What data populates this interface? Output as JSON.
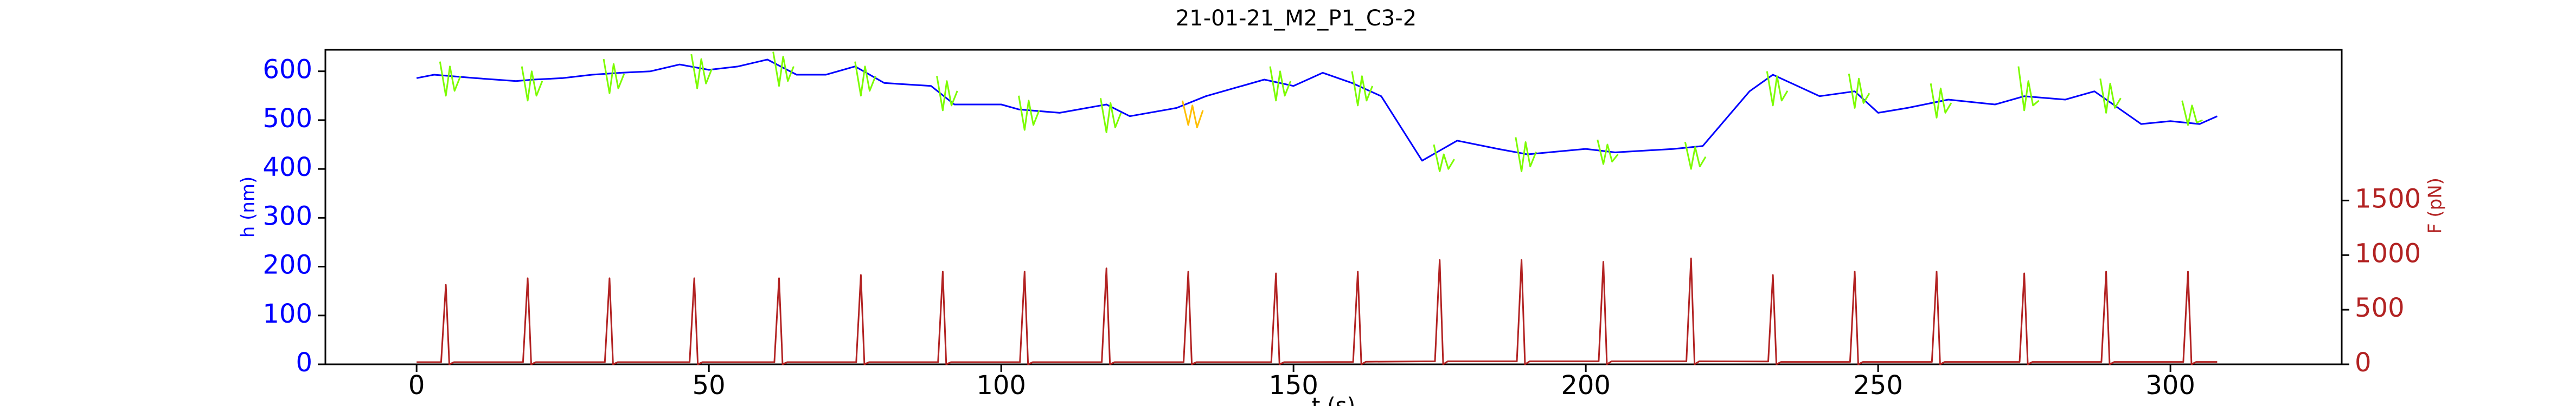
{
  "chart_data": {
    "type": "line",
    "title": "21-01-21_M2_P1_C3-2",
    "xlabel": "t (s)",
    "ylabel": "h (nm)",
    "y2label": "F (pN)",
    "ycolor": "#0000ff",
    "y2color": "#b22222",
    "xlim": [
      -15.6,
      329.3
    ],
    "xticks": [
      0,
      50,
      100,
      150,
      200,
      250,
      300
    ],
    "ylim": [
      0,
      644
    ],
    "yticks": [
      0,
      100,
      200,
      300,
      400,
      500,
      600
    ],
    "y2lim": [
      0,
      2880
    ],
    "y2ticks": [
      0,
      500,
      1000,
      1500
    ],
    "series": [
      {
        "color": "#0000ff",
        "x": [
          0,
          3,
          10,
          17,
          20,
          25,
          30,
          35,
          40,
          45,
          50,
          55,
          60,
          65,
          70,
          75,
          80,
          88,
          92,
          100,
          103,
          110,
          118,
          122,
          130,
          135,
          145,
          150,
          155,
          160,
          165,
          172,
          178,
          185,
          190,
          200,
          205,
          215,
          220,
          228,
          232,
          240,
          246,
          250,
          255,
          262,
          270,
          275,
          282,
          287,
          295,
          300,
          305,
          308
        ],
        "values": [
          586,
          593,
          586,
          580,
          583,
          586,
          593,
          597,
          600,
          614,
          603,
          610,
          624,
          593,
          593,
          610,
          576,
          570,
          532,
          532,
          522,
          515,
          532,
          508,
          525,
          549,
          583,
          570,
          597,
          576,
          549,
          417,
          458,
          441,
          430,
          441,
          434,
          441,
          447,
          559,
          593,
          549,
          559,
          515,
          525,
          542,
          532,
          549,
          542,
          559,
          492,
          498,
          492,
          508
        ]
      },
      {
        "color": "#7cfc00",
        "x": [
          4,
          5,
          5.7,
          6.5,
          7.5,
          null,
          18,
          19,
          19.7,
          20.5,
          21.5,
          null,
          32,
          33,
          33.7,
          34.5,
          35.5,
          null,
          47,
          48,
          48.7,
          49.5,
          50.5,
          null,
          61,
          62,
          62.7,
          63.5,
          64.5,
          null,
          75,
          76,
          76.7,
          77.5,
          78.5,
          null,
          89,
          90,
          90.7,
          91.5,
          92.5,
          null,
          103,
          104,
          104.7,
          105.5,
          106.5,
          null,
          117,
          118,
          118.7,
          119.5,
          120.5,
          null,
          146,
          147,
          147.7,
          148.5,
          149.5,
          null,
          160,
          161,
          161.7,
          162.5,
          163.5,
          null,
          174,
          175,
          175.7,
          176.5,
          177.5,
          null,
          188,
          189,
          189.7,
          190.5,
          191.5,
          null,
          202,
          203,
          203.7,
          204.5,
          205.5,
          null,
          217,
          218,
          218.7,
          219.5,
          220.5,
          null,
          231,
          232,
          232.7,
          233.5,
          234.5,
          null,
          245,
          246,
          246.7,
          247.5,
          248.5,
          null,
          259,
          260,
          260.7,
          261.5,
          262.5,
          null,
          274,
          275,
          275.7,
          276.5,
          277.5,
          null,
          288,
          289,
          289.7,
          290.5,
          291.5,
          null,
          302,
          303,
          303.7,
          304.5,
          305.5
        ],
        "values": [
          620,
          550,
          610,
          560,
          590,
          null,
          610,
          540,
          600,
          550,
          580,
          null,
          625,
          555,
          615,
          565,
          595,
          null,
          635,
          565,
          625,
          575,
          605,
          null,
          640,
          570,
          630,
          580,
          610,
          null,
          620,
          550,
          610,
          560,
          590,
          null,
          590,
          520,
          580,
          530,
          560,
          null,
          550,
          480,
          540,
          490,
          520,
          null,
          545,
          475,
          535,
          485,
          515,
          null,
          610,
          540,
          600,
          550,
          580,
          null,
          600,
          530,
          590,
          540,
          570,
          null,
          450,
          395,
          430,
          400,
          420,
          null,
          465,
          395,
          455,
          405,
          435,
          null,
          460,
          410,
          450,
          415,
          430,
          null,
          455,
          400,
          445,
          405,
          425,
          null,
          600,
          530,
          590,
          540,
          560,
          null,
          595,
          525,
          585,
          535,
          555,
          null,
          575,
          505,
          565,
          515,
          535,
          null,
          610,
          520,
          580,
          530,
          540,
          null,
          585,
          515,
          575,
          525,
          545,
          null,
          540,
          490,
          530,
          495,
          500
        ]
      },
      {
        "color": "#ffbf00",
        "x": [
          131,
          132,
          132.7,
          133.5,
          134.5
        ],
        "values": [
          540,
          490,
          530,
          485,
          520
        ]
      },
      {
        "color": "#b22222",
        "axis": "y2",
        "x": [
          0,
          4.2,
          5,
          5.6,
          6.4,
          18.2,
          19,
          19.6,
          20.4,
          32.2,
          33,
          33.6,
          34.4,
          46.7,
          47.5,
          48.1,
          48.9,
          61.2,
          62,
          62.6,
          63.4,
          75.2,
          76,
          76.6,
          77.4,
          89.2,
          90,
          90.6,
          91.4,
          103.2,
          104,
          104.6,
          105.4,
          117.2,
          118,
          118.6,
          119.4,
          131.2,
          132,
          132.6,
          133.4,
          146.2,
          147,
          147.6,
          148.4,
          160.2,
          161,
          161.6,
          162.4,
          174.2,
          175,
          175.6,
          176.4,
          188.2,
          189,
          189.6,
          190.4,
          202.2,
          203,
          203.6,
          204.4,
          217.2,
          218,
          218.6,
          219.4,
          231.2,
          232,
          232.6,
          233.4,
          245.2,
          246,
          246.6,
          247.4,
          259.2,
          260,
          260.6,
          261.4,
          274.2,
          275,
          275.6,
          276.4,
          288.2,
          289,
          289.6,
          290.4,
          302.2,
          303,
          303.6,
          304.4,
          308
        ],
        "values": [
          20,
          20,
          727,
          0,
          20,
          20,
          788,
          0,
          20,
          20,
          788,
          0,
          20,
          20,
          788,
          0,
          20,
          20,
          788,
          0,
          20,
          20,
          818,
          0,
          20,
          20,
          848,
          0,
          20,
          20,
          848,
          0,
          20,
          20,
          879,
          0,
          20,
          20,
          848,
          0,
          20,
          20,
          833,
          0,
          20,
          22,
          848,
          0,
          24,
          28,
          955,
          0,
          28,
          28,
          955,
          0,
          28,
          28,
          939,
          0,
          28,
          28,
          970,
          0,
          28,
          26,
          818,
          0,
          22,
          22,
          848,
          0,
          22,
          22,
          848,
          0,
          22,
          22,
          833,
          0,
          22,
          22,
          848,
          0,
          22,
          22,
          848,
          0,
          22,
          22
        ]
      }
    ]
  }
}
